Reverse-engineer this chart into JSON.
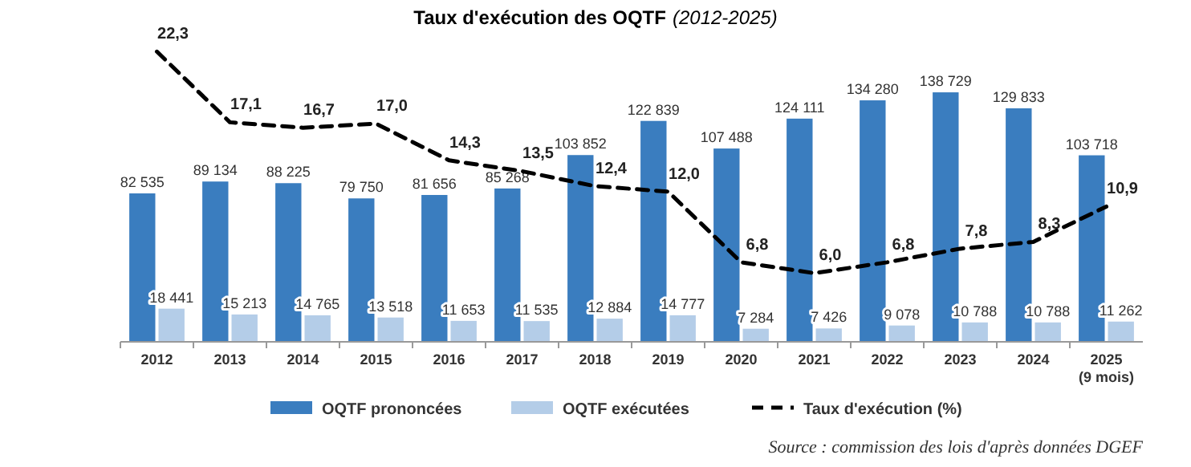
{
  "chart_data": {
    "type": "bar",
    "title": "Taux d'exécution des OQTF",
    "subtitle": "(2012-2025)",
    "categories": [
      "2012",
      "2013",
      "2014",
      "2015",
      "2016",
      "2017",
      "2018",
      "2019",
      "2020",
      "2021",
      "2022",
      "2023",
      "2024",
      "2025\n(9 mois)"
    ],
    "series": [
      {
        "name": "OQTF prononcées",
        "color": "#3a7dbf",
        "values": [
          82535,
          89134,
          88225,
          79750,
          81656,
          85268,
          103852,
          122839,
          107488,
          124111,
          134280,
          138729,
          129833,
          103718
        ],
        "value_labels": [
          "82 535",
          "89 134",
          "88 225",
          "79 750",
          "81 656",
          "85 268",
          "103 852",
          "122 839",
          "107 488",
          "124 111",
          "134 280",
          "138 729",
          "129 833",
          "103 718"
        ]
      },
      {
        "name": "OQTF exécutées",
        "color": "#b4cde8",
        "values": [
          18441,
          15213,
          14765,
          13518,
          11653,
          11535,
          12884,
          14777,
          7284,
          7426,
          9078,
          10788,
          10788,
          11262
        ],
        "value_labels": [
          "18 441",
          "15 213",
          "14 765",
          "13 518",
          "11 653",
          "11 535",
          "12 884",
          "14 777",
          "7 284",
          "7 426",
          "9 078",
          "10 788",
          "10 788",
          "11 262"
        ]
      },
      {
        "name": "Taux d'exécution (%)",
        "type": "line",
        "axis": "y2",
        "color": "#000000",
        "line_style": "dashed",
        "marker": "none",
        "values": [
          22.3,
          17.1,
          16.7,
          17.0,
          14.3,
          13.5,
          12.4,
          12.0,
          6.8,
          6.0,
          6.8,
          7.8,
          8.3,
          10.9
        ],
        "value_labels": [
          "22,3",
          "17,1",
          "16,7",
          "17,0",
          "14,3",
          "13,5",
          "12,4",
          "12,0",
          "6,8",
          "6,0",
          "6,8",
          "7,8",
          "8,3",
          "10,9"
        ]
      }
    ],
    "tick_labels": "x",
    "grid": false,
    "legend": "bottom",
    "annotations": [
      "Source : commission des lois d'après données DGEF"
    ]
  }
}
